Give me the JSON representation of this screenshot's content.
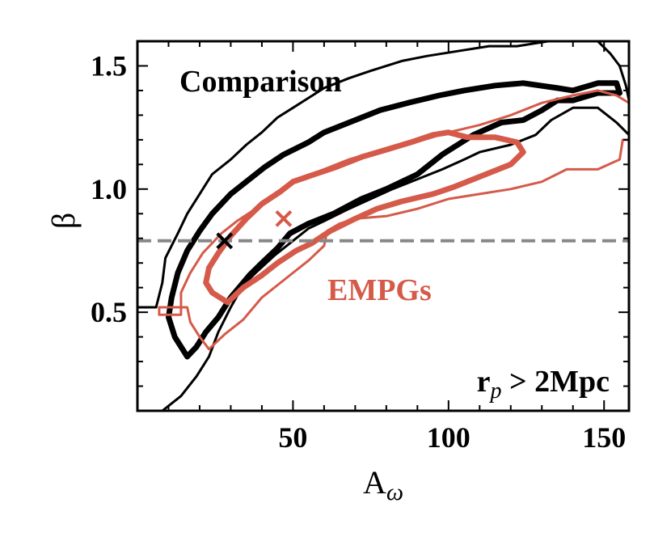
{
  "chart_data": {
    "type": "contour",
    "title": "",
    "xlabel": "A",
    "xlabel_sub": "ω",
    "ylabel": "β",
    "xlim": [
      0,
      158
    ],
    "ylim": [
      0.1,
      1.6
    ],
    "xticks": [
      50,
      100,
      150
    ],
    "yticks": [
      0.5,
      1.0,
      1.5
    ],
    "xtick_labels": [
      "50",
      "100",
      "150"
    ],
    "ytick_labels": [
      "0.5",
      "1.0",
      "1.5"
    ],
    "x_minor_step": 10,
    "y_minor_step": 0.1,
    "hline": {
      "y": 0.79,
      "color": "#888888",
      "style": "dashed"
    },
    "annotations": {
      "comparison": {
        "text": "Comparison",
        "color": "#000000"
      },
      "empgs": {
        "text": "EMPGs",
        "color": "#d55a4a"
      },
      "rp_main": "r",
      "rp_sub": "p",
      "rp_rest": " > 2Mpc"
    },
    "markers": [
      {
        "name": "comparison-best-fit",
        "x": 28,
        "y": 0.79,
        "color": "#000000"
      },
      {
        "name": "empgs-best-fit",
        "x": 47,
        "y": 0.88,
        "color": "#d55a4a"
      }
    ],
    "series": [
      {
        "name": "Comparison",
        "color": "#000000",
        "contours": [
          {
            "level": "outer",
            "width": 3,
            "closed": false,
            "points": [
              [
                0,
                0.52
              ],
              [
                6,
                0.52
              ],
              [
                8,
                0.62
              ],
              [
                9,
                0.72
              ],
              [
                13,
                0.82
              ],
              [
                16,
                0.9
              ],
              [
                20,
                0.98
              ],
              [
                24,
                1.06
              ],
              [
                30,
                1.12
              ],
              [
                35,
                1.18
              ],
              [
                40,
                1.23
              ],
              [
                45,
                1.29
              ],
              [
                50,
                1.33
              ],
              [
                55,
                1.37
              ],
              [
                60,
                1.41
              ],
              [
                68,
                1.45
              ],
              [
                75,
                1.48
              ],
              [
                85,
                1.52
              ],
              [
                93,
                1.54
              ],
              [
                103,
                1.56
              ],
              [
                113,
                1.58
              ],
              [
                122,
                1.58
              ],
              [
                132,
                1.6
              ],
              [
                148,
                1.6
              ],
              [
                152,
                1.55
              ],
              [
                155,
                1.5
              ],
              [
                157,
                1.42
              ],
              [
                158,
                1.36
              ]
            ]
          },
          {
            "level": "outer",
            "width": 3,
            "closed": false,
            "points": [
              [
                8,
                0.1
              ],
              [
                14,
                0.16
              ],
              [
                19,
                0.24
              ],
              [
                23,
                0.32
              ],
              [
                26,
                0.42
              ],
              [
                30,
                0.52
              ],
              [
                34,
                0.61
              ],
              [
                38,
                0.66
              ],
              [
                44,
                0.73
              ],
              [
                49,
                0.78
              ],
              [
                55,
                0.84
              ],
              [
                60,
                0.87
              ],
              [
                68,
                0.92
              ],
              [
                75,
                0.96
              ],
              [
                82,
                1.0
              ],
              [
                90,
                1.04
              ],
              [
                98,
                1.08
              ],
              [
                105,
                1.12
              ],
              [
                110,
                1.15
              ],
              [
                120,
                1.18
              ],
              [
                128,
                1.22
              ],
              [
                133,
                1.28
              ],
              [
                140,
                1.33
              ],
              [
                148,
                1.33
              ],
              [
                154,
                1.27
              ],
              [
                158,
                1.22
              ]
            ]
          },
          {
            "level": "inner",
            "width": 7,
            "closed": false,
            "points": [
              [
                16,
                0.32
              ],
              [
                12,
                0.4
              ],
              [
                10,
                0.48
              ],
              [
                11,
                0.56
              ],
              [
                13,
                0.66
              ],
              [
                16,
                0.75
              ],
              [
                20,
                0.83
              ],
              [
                24,
                0.9
              ],
              [
                30,
                0.98
              ],
              [
                36,
                1.04
              ],
              [
                41,
                1.09
              ],
              [
                47,
                1.14
              ],
              [
                55,
                1.19
              ],
              [
                60,
                1.23
              ],
              [
                70,
                1.28
              ],
              [
                78,
                1.32
              ],
              [
                87,
                1.35
              ],
              [
                97,
                1.38
              ],
              [
                105,
                1.4
              ],
              [
                115,
                1.42
              ],
              [
                124,
                1.43
              ],
              [
                135,
                1.41
              ],
              [
                140,
                1.4
              ],
              [
                148,
                1.43
              ],
              [
                154,
                1.43
              ],
              [
                155,
                1.39
              ],
              [
                148,
                1.39
              ],
              [
                140,
                1.36
              ],
              [
                135,
                1.36
              ],
              [
                130,
                1.32
              ],
              [
                124,
                1.28
              ],
              [
                117,
                1.27
              ],
              [
                108,
                1.22
              ],
              [
                98,
                1.14
              ],
              [
                90,
                1.06
              ],
              [
                80,
                1.0
              ],
              [
                72,
                0.96
              ],
              [
                63,
                0.9
              ],
              [
                55,
                0.86
              ],
              [
                49,
                0.82
              ],
              [
                45,
                0.76
              ],
              [
                40,
                0.7
              ],
              [
                36,
                0.65
              ],
              [
                30,
                0.56
              ],
              [
                26,
                0.48
              ],
              [
                22,
                0.42
              ],
              [
                19,
                0.36
              ],
              [
                16,
                0.32
              ]
            ]
          }
        ]
      },
      {
        "name": "EMPGs",
        "color": "#d55a4a",
        "contours": [
          {
            "level": "outer",
            "width": 3,
            "closed": true,
            "points": [
              [
                23,
                0.35
              ],
              [
                20,
                0.4
              ],
              [
                17,
                0.46
              ],
              [
                16,
                0.52
              ],
              [
                7,
                0.52
              ],
              [
                7,
                0.49
              ],
              [
                14,
                0.49
              ],
              [
                14,
                0.58
              ],
              [
                17,
                0.66
              ],
              [
                21,
                0.74
              ],
              [
                27,
                0.82
              ],
              [
                32,
                0.87
              ],
              [
                38,
                0.92
              ],
              [
                45,
                0.99
              ],
              [
                52,
                1.04
              ],
              [
                60,
                1.08
              ],
              [
                68,
                1.12
              ],
              [
                76,
                1.15
              ],
              [
                84,
                1.17
              ],
              [
                92,
                1.2
              ],
              [
                100,
                1.23
              ],
              [
                110,
                1.26
              ],
              [
                120,
                1.3
              ],
              [
                130,
                1.35
              ],
              [
                140,
                1.38
              ],
              [
                148,
                1.4
              ],
              [
                154,
                1.38
              ],
              [
                158,
                1.35
              ],
              [
                158,
                1.2
              ],
              [
                156,
                1.2
              ],
              [
                155,
                1.12
              ],
              [
                148,
                1.08
              ],
              [
                138,
                1.08
              ],
              [
                130,
                1.03
              ],
              [
                120,
                1.0
              ],
              [
                110,
                0.98
              ],
              [
                100,
                0.96
              ],
              [
                90,
                0.92
              ],
              [
                80,
                0.89
              ],
              [
                70,
                0.88
              ],
              [
                65,
                0.86
              ],
              [
                61,
                0.83
              ],
              [
                60,
                0.77
              ],
              [
                55,
                0.71
              ],
              [
                48,
                0.64
              ],
              [
                40,
                0.56
              ],
              [
                34,
                0.47
              ],
              [
                28,
                0.41
              ],
              [
                23,
                0.35
              ]
            ]
          },
          {
            "level": "inner",
            "width": 7,
            "closed": true,
            "points": [
              [
                29,
                0.54
              ],
              [
                24,
                0.58
              ],
              [
                22,
                0.62
              ],
              [
                23,
                0.68
              ],
              [
                26,
                0.74
              ],
              [
                30,
                0.81
              ],
              [
                35,
                0.88
              ],
              [
                40,
                0.94
              ],
              [
                46,
                0.99
              ],
              [
                50,
                1.03
              ],
              [
                57,
                1.06
              ],
              [
                64,
                1.09
              ],
              [
                72,
                1.13
              ],
              [
                80,
                1.16
              ],
              [
                88,
                1.19
              ],
              [
                95,
                1.22
              ],
              [
                100,
                1.23
              ],
              [
                106,
                1.21
              ],
              [
                115,
                1.21
              ],
              [
                122,
                1.19
              ],
              [
                124,
                1.15
              ],
              [
                120,
                1.1
              ],
              [
                112,
                1.06
              ],
              [
                102,
                1.01
              ],
              [
                95,
                0.98
              ],
              [
                85,
                0.95
              ],
              [
                77,
                0.92
              ],
              [
                70,
                0.88
              ],
              [
                62,
                0.83
              ],
              [
                56,
                0.78
              ],
              [
                51,
                0.75
              ],
              [
                45,
                0.7
              ],
              [
                40,
                0.65
              ],
              [
                34,
                0.6
              ],
              [
                29,
                0.54
              ]
            ]
          }
        ]
      }
    ]
  }
}
